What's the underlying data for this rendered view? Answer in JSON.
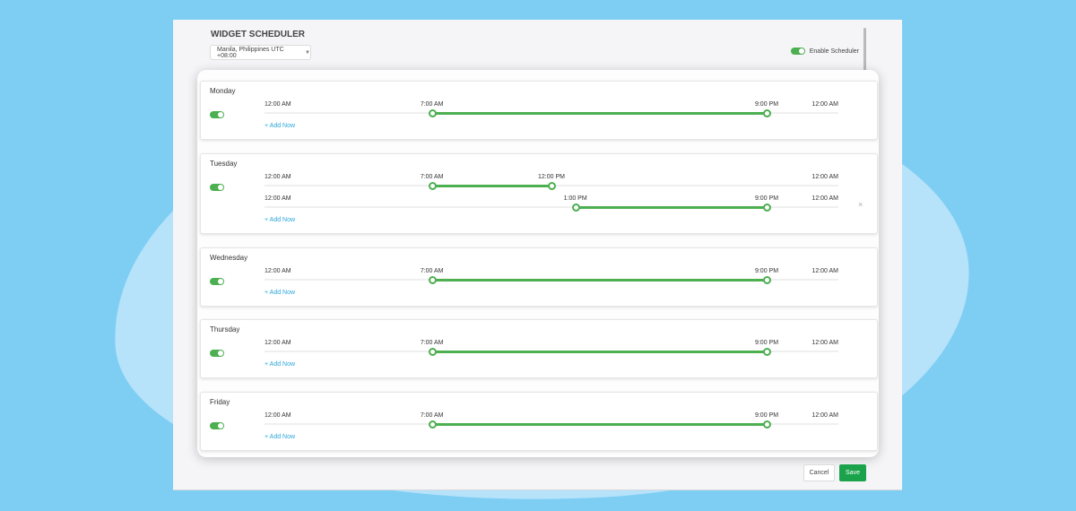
{
  "header": {
    "title": "WIDGET SCHEDULER",
    "timezone": "Manila, Philippines UTC +08:00",
    "enable_label": "Enable Scheduler"
  },
  "days": [
    {
      "name": "Monday",
      "enabled": true,
      "add_label": "+ Add Now",
      "rows": [
        {
          "start_label": "12:00 AM",
          "from": "7:00 AM",
          "to": "9:00 PM",
          "end_label": "12:00 AM",
          "from_hour": 7,
          "to_hour": 21,
          "removable": false
        }
      ]
    },
    {
      "name": "Tuesday",
      "enabled": true,
      "add_label": "+ Add Now",
      "rows": [
        {
          "start_label": "12:00 AM",
          "from": "7:00 AM",
          "to": "12:00 PM",
          "end_label": "12:00 AM",
          "from_hour": 7,
          "to_hour": 12,
          "removable": false
        },
        {
          "start_label": "12:00 AM",
          "from": "1:00 PM",
          "to": "9:00 PM",
          "end_label": "12:00 AM",
          "from_hour": 13,
          "to_hour": 21,
          "removable": true,
          "remove_label": "×"
        }
      ]
    },
    {
      "name": "Wednesday",
      "enabled": true,
      "add_label": "+ Add Now",
      "rows": [
        {
          "start_label": "12:00 AM",
          "from": "7:00 AM",
          "to": "9:00 PM",
          "end_label": "12:00 AM",
          "from_hour": 7,
          "to_hour": 21,
          "removable": false
        }
      ]
    },
    {
      "name": "Thursday",
      "enabled": true,
      "add_label": "+ Add Now",
      "rows": [
        {
          "start_label": "12:00 AM",
          "from": "7:00 AM",
          "to": "9:00 PM",
          "end_label": "12:00 AM",
          "from_hour": 7,
          "to_hour": 21,
          "removable": false
        }
      ]
    },
    {
      "name": "Friday",
      "enabled": true,
      "add_label": "+ Add Now",
      "rows": [
        {
          "start_label": "12:00 AM",
          "from": "7:00 AM",
          "to": "9:00 PM",
          "end_label": "12:00 AM",
          "from_hour": 7,
          "to_hour": 21,
          "removable": false
        }
      ]
    }
  ],
  "footer": {
    "cancel_label": "Cancel",
    "save_label": "Save"
  },
  "colors": {
    "accent": "#4caf50",
    "save": "#1aa34a",
    "link": "#2aa7d8"
  },
  "icons": {
    "timezone_dropdown": "chevron-down-icon",
    "remove_row": "close-icon"
  }
}
